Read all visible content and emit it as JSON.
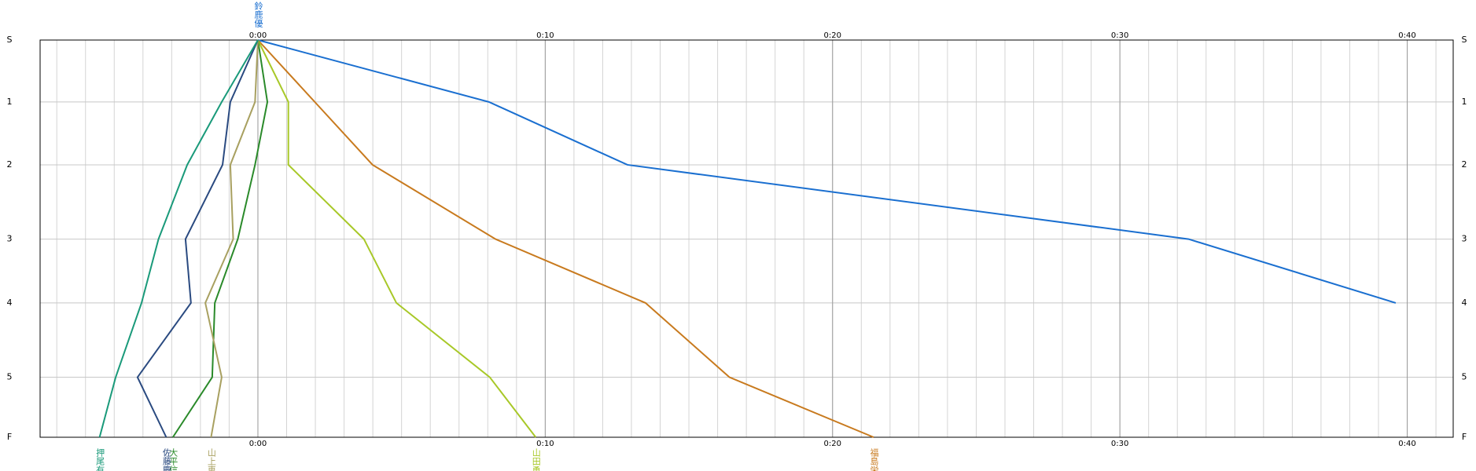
{
  "chart_data": {
    "type": "line",
    "xlim": [
      -7.58,
      41.6
    ],
    "ylim": [
      0,
      417
    ],
    "xticks": [
      {
        "value": 0,
        "label": "0:00"
      },
      {
        "value": 10,
        "label": "0:10"
      },
      {
        "value": 20,
        "label": "0:20"
      },
      {
        "value": 30,
        "label": "0:30"
      },
      {
        "value": 40,
        "label": "0:40"
      }
    ],
    "yticks": [
      {
        "value": 0,
        "label": "S"
      },
      {
        "value": 65,
        "label": "1"
      },
      {
        "value": 131,
        "label": "2"
      },
      {
        "value": 209,
        "label": "3"
      },
      {
        "value": 276,
        "label": "4"
      },
      {
        "value": 354,
        "label": "5"
      },
      {
        "value": 417,
        "label": "F"
      }
    ],
    "grid": true,
    "minor_grid": true,
    "series": [
      {
        "name": "鈴鹿優",
        "color": "#1a6fd0",
        "values": [
          0,
          8.04,
          12.86,
          32.39,
          39.6,
          null,
          null
        ]
      },
      {
        "name": "福島栄",
        "color": "#c87a1e",
        "values": [
          0,
          1.98,
          3.99,
          8.27,
          13.49,
          16.41,
          21.43
        ]
      },
      {
        "name": "山田勇",
        "color": "#a8c828",
        "values": [
          0,
          1.06,
          1.06,
          3.69,
          4.82,
          8.07,
          9.67
        ]
      },
      {
        "name": "大平信",
        "color": "#2a8a2a",
        "values": [
          0,
          0.33,
          -0.1,
          -0.7,
          -1.5,
          -1.59,
          -2.96
        ]
      },
      {
        "name": "山上恵",
        "color": "#a8a060",
        "values": [
          0,
          -0.1,
          -0.96,
          -0.86,
          -1.83,
          -1.26,
          -1.63
        ]
      },
      {
        "name": "佐藤慶",
        "color": "#2a4a80",
        "values": [
          0,
          -0.96,
          -1.23,
          -2.52,
          -2.33,
          -4.19,
          -3.19
        ]
      },
      {
        "name": "押尾有",
        "color": "#1a9a7a",
        "values": [
          0,
          -1.26,
          -2.46,
          -3.46,
          -4.05,
          -4.95,
          -5.51
        ]
      }
    ]
  }
}
